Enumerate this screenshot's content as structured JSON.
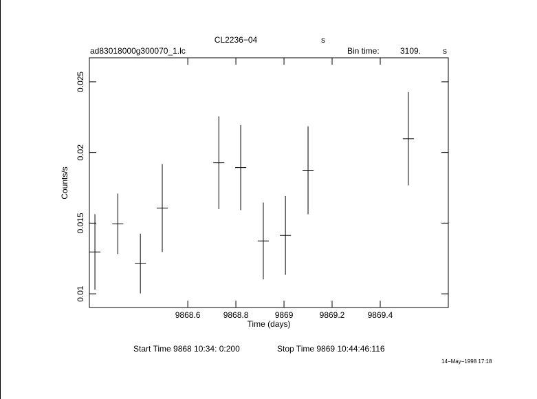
{
  "chart_data": {
    "type": "errorbar",
    "title": "CL2236−04",
    "title_unit": "s",
    "file_name": "ad83018000g300070_1.lc",
    "bin_time_label": "Bin time:",
    "bin_time": "3109.",
    "bin_time_unit": "s",
    "xlabel": "Time (days)",
    "ylabel": "Counts/s",
    "start_time": "Start Time  9868 10:34: 0:200",
    "stop_time": "Stop Time  9869 10:44:46:116",
    "timestamp": "14−May−1998 17:18",
    "x": [
      9868.214,
      9868.309,
      9868.403,
      9868.494,
      9868.729,
      9868.82,
      9868.914,
      9869.006,
      9869.1,
      9869.517
    ],
    "values": [
      0.01296,
      0.01495,
      0.01214,
      0.01607,
      0.01927,
      0.01893,
      0.01374,
      0.01413,
      0.01874,
      0.02097
    ],
    "yerr": [
      0.00267,
      0.00214,
      0.00211,
      0.00311,
      0.00328,
      0.00301,
      0.00272,
      0.00279,
      0.00311,
      0.0033
    ],
    "xerr": 0.023,
    "color": "#000000",
    "xlim": [
      9868.191,
      9869.683
    ],
    "ylim": [
      0.00903,
      0.0267
    ],
    "xticks": [
      9868.6,
      9868.8,
      9869,
      9869.2,
      9869.4
    ],
    "yticks": [
      0.01,
      0.015,
      0.02,
      0.025
    ]
  }
}
